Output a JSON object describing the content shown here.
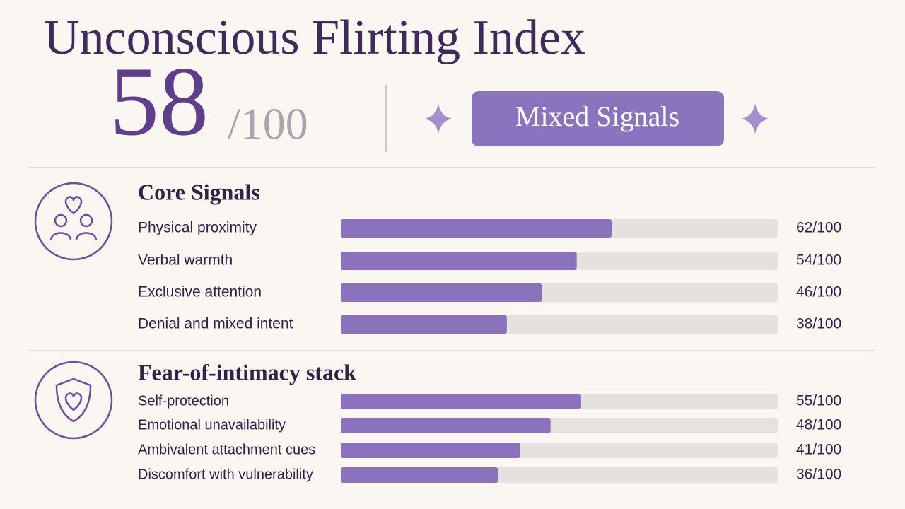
{
  "title": "Unconscious Flirting Index",
  "score": {
    "value": 58,
    "out_of": "/100"
  },
  "badge": "Mixed Signals",
  "scale_max": 100,
  "sections": [
    {
      "title": "Core Signals",
      "items": [
        {
          "label": "Physical proximity",
          "value": 62,
          "value_label": "62/100"
        },
        {
          "label": "Verbal warmth",
          "value": 54,
          "value_label": "54/100"
        },
        {
          "label": "Exclusive attention",
          "value": 46,
          "value_label": "46/100"
        },
        {
          "label": "Denial and mixed intent",
          "value": 38,
          "value_label": "38/100"
        }
      ]
    },
    {
      "title": "Fear-of-intimacy stack",
      "items": [
        {
          "label": "Self-protection",
          "value": 55,
          "value_label": "55/100"
        },
        {
          "label": "Emotional unavailability",
          "value": 48,
          "value_label": "48/100"
        },
        {
          "label": "Ambivalent attachment cues",
          "value": 41,
          "value_label": "41/100"
        },
        {
          "label": "Discomfort with vulnerability",
          "value": 36,
          "value_label": "36/100"
        }
      ]
    }
  ]
}
